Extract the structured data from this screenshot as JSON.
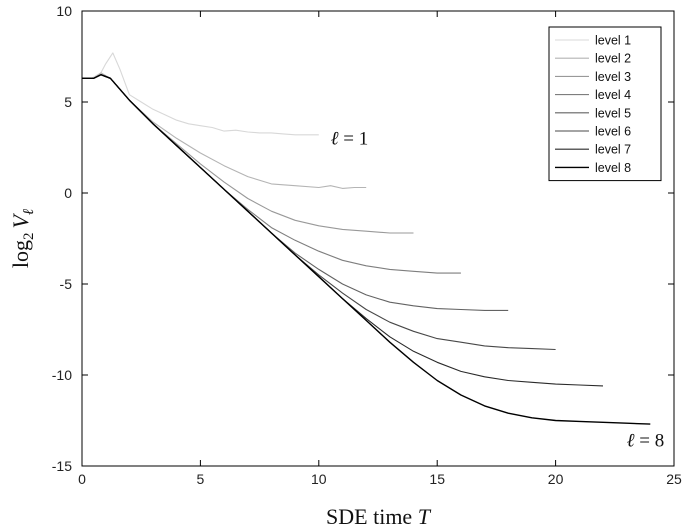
{
  "chart_data": {
    "type": "line",
    "title": "",
    "xlabel": "SDE time T",
    "ylabel": "log2 Vℓ",
    "xlim": [
      0,
      25
    ],
    "ylim": [
      -15,
      10
    ],
    "xticks": [
      0,
      5,
      10,
      15,
      20,
      25
    ],
    "yticks": [
      -15,
      -10,
      -5,
      0,
      5,
      10
    ],
    "xtick_labels": [
      "0",
      "5",
      "10",
      "15",
      "20",
      "25"
    ],
    "ytick_labels": [
      "-15",
      "-10",
      "-5",
      "0",
      "5",
      "10"
    ],
    "grid": false,
    "legend_position": "top-right",
    "annotations": [
      {
        "text": "ℓ = 1",
        "x": 10.5,
        "y": 3.0
      },
      {
        "text": "ℓ = 8",
        "x": 23.0,
        "y": -13.6
      }
    ],
    "series": [
      {
        "name": "level 1",
        "color": "#d8d8d8",
        "x": [
          0,
          0.4,
          0.8,
          1.0,
          1.3,
          1.6,
          2.0,
          2.5,
          3,
          3.5,
          4,
          4.5,
          5,
          5.5,
          6,
          6.5,
          7,
          7.5,
          8,
          8.5,
          9,
          9.5,
          10
        ],
        "y": [
          6.3,
          6.3,
          6.6,
          7.1,
          7.7,
          6.8,
          5.4,
          5.0,
          4.6,
          4.3,
          4.0,
          3.8,
          3.7,
          3.6,
          3.4,
          3.45,
          3.35,
          3.3,
          3.3,
          3.25,
          3.2,
          3.2,
          3.2
        ]
      },
      {
        "name": "level 2",
        "color": "#b4b4b4",
        "x": [
          0,
          0.5,
          0.8,
          1.2,
          2,
          3,
          4,
          5,
          6,
          7,
          8,
          9,
          10,
          10.5,
          11,
          11.5,
          12
        ],
        "y": [
          6.3,
          6.3,
          6.6,
          6.3,
          5.1,
          3.9,
          3.0,
          2.2,
          1.5,
          0.9,
          0.5,
          0.4,
          0.3,
          0.4,
          0.25,
          0.3,
          0.3
        ]
      },
      {
        "name": "level 3",
        "color": "#999999",
        "x": [
          0,
          0.5,
          0.8,
          1.2,
          2,
          3,
          4,
          5,
          6,
          7,
          8,
          9,
          10,
          11,
          12,
          13,
          14
        ],
        "y": [
          6.3,
          6.3,
          6.5,
          6.3,
          5.1,
          3.8,
          2.7,
          1.6,
          0.6,
          -0.3,
          -1.0,
          -1.5,
          -1.8,
          -2.0,
          -2.1,
          -2.2,
          -2.2
        ]
      },
      {
        "name": "level 4",
        "color": "#7e7e7e",
        "x": [
          0,
          0.5,
          0.8,
          1.2,
          2,
          3,
          4,
          5,
          6,
          7,
          8,
          9,
          10,
          11,
          12,
          13,
          14,
          15,
          16
        ],
        "y": [
          6.3,
          6.3,
          6.5,
          6.3,
          5.1,
          3.8,
          2.6,
          1.4,
          0.2,
          -0.9,
          -1.9,
          -2.6,
          -3.2,
          -3.7,
          -4.0,
          -4.2,
          -4.3,
          -4.4,
          -4.4
        ]
      },
      {
        "name": "level 5",
        "color": "#636363",
        "x": [
          0,
          0.5,
          0.8,
          1.2,
          2,
          3,
          4,
          5,
          6,
          7,
          8,
          9,
          10,
          11,
          12,
          13,
          14,
          15,
          16,
          17,
          18
        ],
        "y": [
          6.3,
          6.3,
          6.5,
          6.3,
          5.1,
          3.8,
          2.6,
          1.4,
          0.2,
          -1.0,
          -2.2,
          -3.3,
          -4.2,
          -5.0,
          -5.6,
          -6.0,
          -6.2,
          -6.35,
          -6.4,
          -6.45,
          -6.45
        ]
      },
      {
        "name": "level 6",
        "color": "#484848",
        "x": [
          0,
          0.5,
          0.8,
          1.2,
          2,
          3,
          4,
          5,
          6,
          7,
          8,
          9,
          10,
          11,
          12,
          13,
          14,
          15,
          16,
          17,
          18,
          19,
          20
        ],
        "y": [
          6.3,
          6.3,
          6.5,
          6.3,
          5.1,
          3.8,
          2.6,
          1.4,
          0.2,
          -1.0,
          -2.2,
          -3.4,
          -4.5,
          -5.5,
          -6.4,
          -7.1,
          -7.6,
          -8.0,
          -8.2,
          -8.4,
          -8.5,
          -8.55,
          -8.6
        ]
      },
      {
        "name": "level 7",
        "color": "#2a2a2a",
        "x": [
          0,
          0.5,
          0.8,
          1.2,
          2,
          3,
          4,
          5,
          6,
          7,
          8,
          9,
          10,
          11,
          12,
          13,
          14,
          15,
          16,
          17,
          18,
          19,
          20,
          21,
          22
        ],
        "y": [
          6.3,
          6.3,
          6.5,
          6.3,
          5.1,
          3.8,
          2.6,
          1.4,
          0.2,
          -1.0,
          -2.2,
          -3.4,
          -4.6,
          -5.8,
          -6.9,
          -7.9,
          -8.7,
          -9.3,
          -9.8,
          -10.1,
          -10.3,
          -10.4,
          -10.5,
          -10.55,
          -10.6
        ]
      },
      {
        "name": "level 8",
        "color": "#000000",
        "x": [
          0,
          0.5,
          0.8,
          1.2,
          2,
          3,
          4,
          5,
          6,
          7,
          8,
          9,
          10,
          11,
          12,
          13,
          14,
          15,
          16,
          17,
          18,
          19,
          20,
          21,
          22,
          23,
          24
        ],
        "y": [
          6.3,
          6.3,
          6.5,
          6.3,
          5.1,
          3.8,
          2.6,
          1.4,
          0.2,
          -1.0,
          -2.2,
          -3.4,
          -4.6,
          -5.8,
          -7.0,
          -8.2,
          -9.3,
          -10.3,
          -11.1,
          -11.7,
          -12.1,
          -12.35,
          -12.5,
          -12.55,
          -12.6,
          -12.65,
          -12.7
        ]
      }
    ]
  }
}
